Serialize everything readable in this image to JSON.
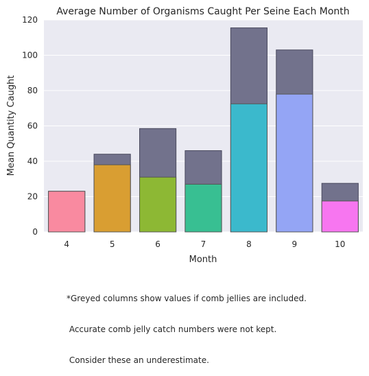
{
  "chart_data": {
    "type": "bar",
    "title": "Average Number of Organisms Caught Per Seine Each Month",
    "xlabel": "Month",
    "ylabel": "Mean Quantity Caught",
    "categories": [
      "4",
      "5",
      "6",
      "7",
      "8",
      "9",
      "10"
    ],
    "ylim": [
      0,
      120
    ],
    "yticks": [
      "0",
      "20",
      "40",
      "60",
      "80",
      "100",
      "120"
    ],
    "grid": true,
    "series": [
      {
        "name": "",
        "color": "#72728c",
        "values": [
          23,
          44,
          58.5,
          46,
          115.5,
          103,
          27.5
        ]
      },
      {
        "name": "",
        "colors": [
          "#f98aa0",
          "#d99e32",
          "#8db834",
          "#38bf92",
          "#3bb9cc",
          "#94a5f5",
          "#f776f0"
        ],
        "values": [
          23,
          38,
          31,
          27,
          72.5,
          78,
          17.5
        ]
      }
    ]
  },
  "footnote": {
    "lines": [
      "*Greyed columns show values if comb jellies are included.",
      " Accurate comb jelly catch numbers were not kept.",
      " Consider these an underestimate."
    ]
  }
}
